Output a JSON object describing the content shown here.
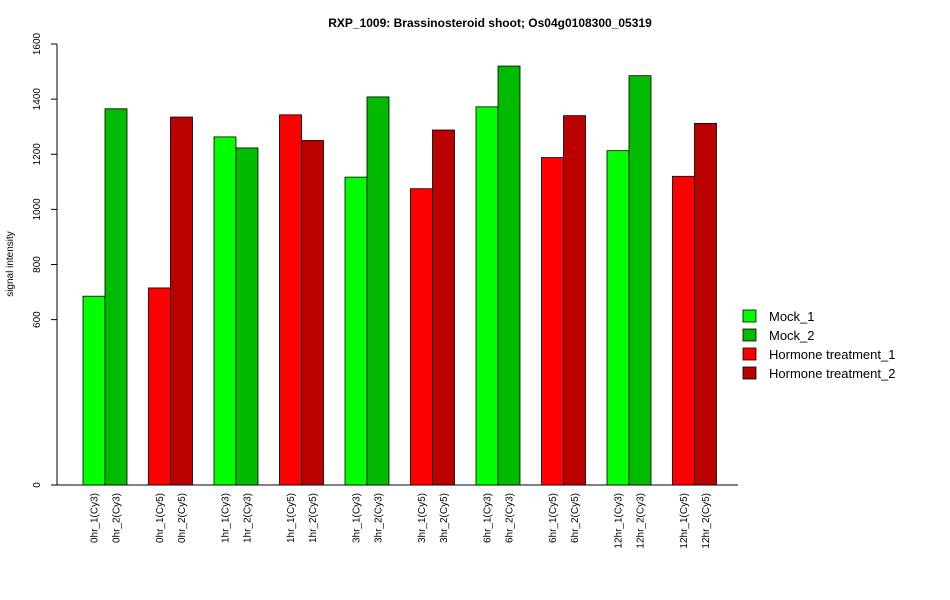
{
  "chart_data": {
    "type": "bar",
    "title": "RXP_1009: Brassinosteroid shoot; Os04g0108300_05319",
    "ylabel": "signal intensity",
    "xlabel": "",
    "ylim": [
      0,
      1600
    ],
    "yticks": [
      0,
      600,
      800,
      1000,
      1200,
      1400,
      1600
    ],
    "grid": false,
    "legend_position": "right",
    "categories": [
      "0hr_1(Cy3)",
      "0hr_2(Cy3)",
      "0hr_1(Cy5)",
      "0hr_2(Cy5)",
      "1hr_1(Cy3)",
      "1hr_2(Cy3)",
      "1hr_1(Cy5)",
      "1hr_2(Cy5)",
      "3hr_1(Cy3)",
      "3hr_2(Cy3)",
      "3hr_1(Cy5)",
      "3hr_2(Cy5)",
      "6hr_1(Cy3)",
      "6hr_2(Cy3)",
      "6hr_1(Cy5)",
      "6hr_2(Cy5)",
      "12hr_1(Cy3)",
      "12hr_2(Cy3)",
      "12hr_1(Cy5)",
      "12hr_2(Cy5)"
    ],
    "values": [
      685,
      1365,
      715,
      1335,
      1263,
      1223,
      1343,
      1250,
      1117,
      1408,
      1075,
      1288,
      1372,
      1520,
      1188,
      1340,
      1213,
      1485,
      1120,
      1312
    ],
    "series_index": [
      0,
      1,
      2,
      3,
      0,
      1,
      2,
      3,
      0,
      1,
      2,
      3,
      0,
      1,
      2,
      3,
      0,
      1,
      2,
      3
    ],
    "series": [
      {
        "name": "Mock_1",
        "color": "#00ff00"
      },
      {
        "name": "Mock_2",
        "color": "#00bb00"
      },
      {
        "name": "Hormone treatment_1",
        "color": "#ff0000"
      },
      {
        "name": "Hormone treatment_2",
        "color": "#bb0000"
      }
    ]
  }
}
